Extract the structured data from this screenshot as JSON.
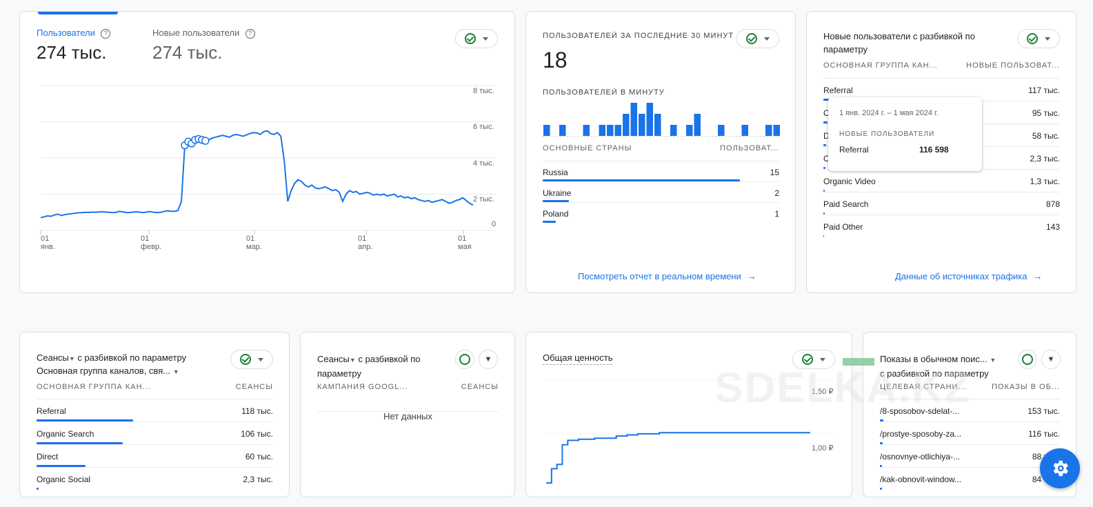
{
  "card1": {
    "metric1_label": "Пользователи",
    "metric1_value": "274 тыс.",
    "metric2_label": "Новые пользователи",
    "metric2_value": "274 тыс.",
    "help_icon": "?",
    "y_ticks": [
      "8 тыс.",
      "6 тыс.",
      "4 тыс.",
      "2 тыс.",
      "0"
    ],
    "x_ticks": [
      {
        "d": "01",
        "m": "янв."
      },
      {
        "d": "01",
        "m": "февр."
      },
      {
        "d": "01",
        "m": "мар."
      },
      {
        "d": "01",
        "m": "апр."
      },
      {
        "d": "01",
        "m": "мая"
      }
    ]
  },
  "chart_data": [
    {
      "type": "line",
      "title": "",
      "xlabel": "",
      "ylabel": "",
      "x_range": [
        "2024-01-01",
        "2024-05-07"
      ],
      "ylim": [
        0,
        8000
      ],
      "series": [
        {
          "values": [
            700,
            750,
            800,
            780,
            850,
            900,
            820,
            870,
            900,
            920,
            950,
            970,
            980,
            1000,
            990,
            1010,
            1000,
            1020,
            1030,
            1010,
            1000,
            980,
            1000,
            1050,
            1020,
            980,
            990,
            1010,
            1030,
            1000,
            980,
            1020,
            1040,
            1000,
            980,
            1000,
            1050,
            1080,
            1060,
            1050,
            1100,
            1600,
            4700,
            4900,
            4800,
            5000,
            5050,
            5000,
            4950,
            5000,
            5100,
            5150,
            5200,
            5250,
            5200,
            5150,
            5250,
            5300,
            5250,
            5200,
            5280,
            5350,
            5400,
            5380,
            5300,
            5450,
            5500,
            5350,
            5300,
            5400,
            5200,
            3800,
            1600,
            2200,
            2600,
            2800,
            2700,
            2500,
            2400,
            2500,
            2350,
            2300,
            2350,
            2400,
            2300,
            2200,
            2250,
            2100,
            1600,
            2000,
            2200,
            2100,
            2150,
            2000,
            2050,
            2100,
            2050,
            1950,
            2000,
            1950,
            2000,
            1900,
            1950,
            2000,
            1850,
            1900,
            1800,
            1850,
            1750,
            1800,
            1700,
            1650,
            1600,
            1650,
            1550,
            1600,
            1650,
            1700,
            1600,
            1500,
            1550,
            1650,
            1700,
            1800,
            1650,
            1500,
            1400
          ]
        }
      ],
      "grid": true,
      "legend": "none"
    },
    {
      "type": "bar",
      "title": "ПОЛЬЗОВАТЕЛЕЙ В МИНУТУ",
      "values": [
        1,
        0,
        1,
        0,
        0,
        1,
        0,
        1,
        1,
        1,
        2,
        3,
        2,
        3,
        2,
        0,
        1,
        0,
        1,
        2,
        0,
        0,
        1,
        0,
        0,
        1,
        0,
        0,
        1,
        1
      ]
    },
    {
      "type": "line",
      "title": "Общая ценность",
      "ylim": [
        0.5,
        1.6
      ],
      "y_ticks": [
        "1,50 ₽",
        "1,00 ₽"
      ],
      "series": [
        {
          "values": [
            0.55,
            0.68,
            0.72,
            0.9,
            0.94,
            0.94,
            0.95,
            0.95,
            0.95,
            0.96,
            0.96,
            0.96,
            0.96,
            0.98,
            0.98,
            0.99,
            0.99,
            1.0,
            1.0,
            1.0,
            1.0,
            1.01,
            1.01,
            1.01,
            1.01,
            1.01,
            1.01,
            1.01,
            1.01,
            1.01,
            1.01,
            1.01,
            1.01,
            1.01,
            1.01,
            1.01,
            1.01,
            1.01,
            1.01,
            1.01,
            1.01,
            1.01,
            1.01,
            1.01,
            1.01,
            1.01,
            1.01,
            1.01,
            1.01,
            1.01
          ]
        }
      ]
    }
  ],
  "card2": {
    "title": "ПОЛЬЗОВАТЕЛЕЙ ЗА ПОСЛЕДНИЕ 30 МИНУТ",
    "value": "18",
    "per_minute_label": "ПОЛЬЗОВАТЕЛЕЙ В МИНУТУ",
    "col1": "ОСНОВНЫЕ СТРАНЫ",
    "col2": "ПОЛЬЗОВАТ...",
    "rows": [
      {
        "label": "Russia",
        "value": "15",
        "bar": 0.96
      },
      {
        "label": "Ukraine",
        "value": "2",
        "bar": 0.12
      },
      {
        "label": "Poland",
        "value": "1",
        "bar": 0.06
      }
    ],
    "link": "Посмотреть отчет в реальном времени"
  },
  "card3": {
    "title": "Новые пользователи с разбивкой по параметру",
    "col1": "ОСНОВНАЯ ГРУППА КАН...",
    "col2": "НОВЫЕ ПОЛЬЗОВАТ...",
    "rows": [
      {
        "label": "Referral",
        "value": "117 тыс.",
        "bar": 0.03
      },
      {
        "label": "O",
        "value": "95 тыс.",
        "bar": 0.02
      },
      {
        "label": "D",
        "value": "58 тыс.",
        "bar": 0.015
      },
      {
        "label": "O",
        "value": "2,3 тыс.",
        "bar": 0.01
      },
      {
        "label": "Organic Video",
        "value": "1,3 тыс.",
        "bar": 0.005
      },
      {
        "label": "Paid Search",
        "value": "878",
        "bar": 0.004
      },
      {
        "label": "Paid Other",
        "value": "143",
        "bar": 0.002
      }
    ],
    "link": "Данные об источниках трафика",
    "tooltip": {
      "date": "1 янв. 2024 г. – 1 мая 2024 г.",
      "metric": "НОВЫЕ ПОЛЬЗОВАТЕЛИ",
      "label": "Referral",
      "value": "116 598"
    }
  },
  "card4": {
    "title_a": "Сеансы",
    "title_b": "с разбивкой по параметру",
    "subtitle": "Основная группа каналов, свя...",
    "col1": "ОСНОВНАЯ ГРУППА КАН...",
    "col2": "СЕАНСЫ",
    "rows": [
      {
        "label": "Referral",
        "value": "118 тыс.",
        "bar": 0.41
      },
      {
        "label": "Organic Search",
        "value": "106 тыс.",
        "bar": 0.36
      },
      {
        "label": "Direct",
        "value": "60 тыс.",
        "bar": 0.21
      },
      {
        "label": "Organic Social",
        "value": "2,3 тыс.",
        "bar": 0.01
      }
    ]
  },
  "card5": {
    "title_a": "Сеансы",
    "title_b": "с разбивкой по",
    "title_c": "параметру",
    "col1": "КАМПАНИЯ GOOGL...",
    "col2": "СЕАНСЫ",
    "empty": "Нет данных"
  },
  "card6": {
    "title": "Общая ценность"
  },
  "card7": {
    "title_a": "Показы в обычном поис...",
    "title_b": "с разбивкой по параметру",
    "col1": "ЦЕЛЕВАЯ СТРАНИ...",
    "col2": "ПОКАЗЫ В ОБ...",
    "rows": [
      {
        "label": "/8-sposobov-sdelat-...",
        "value": "153 тыс.",
        "bar": 0.02
      },
      {
        "label": "/prostye-sposoby-za...",
        "value": "116 тыс.",
        "bar": 0.015
      },
      {
        "label": "/osnovnye-otlichiya-...",
        "value": "88 тыс.",
        "bar": 0.01
      },
      {
        "label": "/kak-obnovit-window...",
        "value": "84 тыс.",
        "bar": 0.01
      }
    ]
  },
  "watermark": "SDELKA.KZ",
  "colors": {
    "accent": "#1a73e8",
    "success": "#188038",
    "fab": "#1a73e8"
  }
}
